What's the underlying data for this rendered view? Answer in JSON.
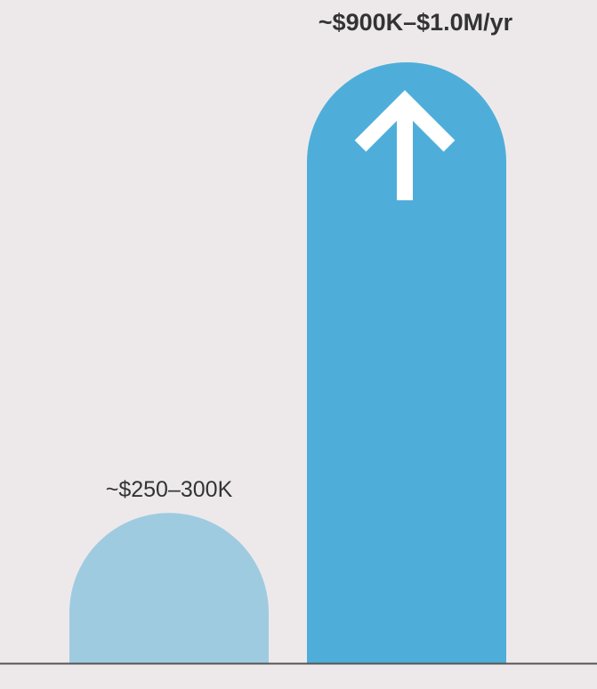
{
  "chart_data": {
    "type": "bar",
    "categories": [
      null,
      null
    ],
    "series": [
      {
        "colors": [
          "#9fcbe1",
          "#4eaed9"
        ],
        "values": [
          250000,
          1000000
        ],
        "value_labels": [
          "~$250–300K",
          "~$900K–$1.0M/yr"
        ]
      }
    ]
  }
}
